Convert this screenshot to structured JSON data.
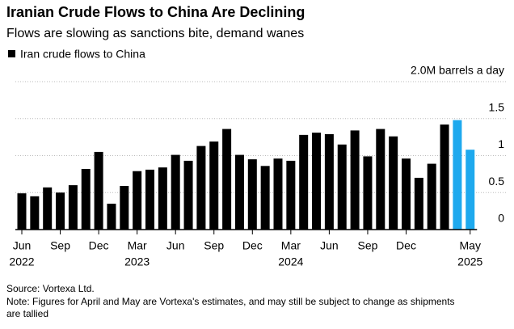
{
  "chart_data": {
    "type": "bar",
    "title": "Iranian Crude Flows to China Are Declining",
    "subtitle": "Flows are slowing as sanctions bite, demand wanes",
    "categories": [
      "Jun",
      null,
      null,
      "Sep",
      null,
      null,
      "Dec",
      null,
      null,
      "Mar",
      null,
      null,
      "Jun",
      null,
      null,
      "Sep",
      null,
      null,
      "Dec",
      null,
      null,
      "Mar",
      null,
      null,
      "Jun",
      null,
      null,
      "Sep",
      null,
      null,
      "Dec",
      null,
      null,
      null,
      null,
      "May"
    ],
    "years": [
      "2022",
      null,
      null,
      null,
      null,
      null,
      null,
      null,
      null,
      "2023",
      null,
      null,
      null,
      null,
      null,
      null,
      null,
      null,
      null,
      null,
      null,
      "2024",
      null,
      null,
      null,
      null,
      null,
      null,
      null,
      null,
      null,
      null,
      null,
      null,
      null,
      "2025"
    ],
    "series": [
      {
        "name": "Iran crude flows to China",
        "color": "#000000",
        "values": [
          0.49,
          0.45,
          0.57,
          0.5,
          0.6,
          0.82,
          1.05,
          0.35,
          0.59,
          0.79,
          0.81,
          0.84,
          1.01,
          0.93,
          1.13,
          1.19,
          1.36,
          1.01,
          0.95,
          0.86,
          0.96,
          0.93,
          1.28,
          1.31,
          1.29,
          1.15,
          1.34,
          0.99,
          1.36,
          1.26,
          0.96,
          0.7,
          0.89,
          1.42,
          1.48,
          1.08
        ]
      }
    ],
    "bar_colors": [
      "#000000",
      "#000000",
      "#000000",
      "#000000",
      "#000000",
      "#000000",
      "#000000",
      "#000000",
      "#000000",
      "#000000",
      "#000000",
      "#000000",
      "#000000",
      "#000000",
      "#000000",
      "#000000",
      "#000000",
      "#000000",
      "#000000",
      "#000000",
      "#000000",
      "#000000",
      "#000000",
      "#000000",
      "#000000",
      "#000000",
      "#000000",
      "#000000",
      "#000000",
      "#000000",
      "#000000",
      "#000000",
      "#000000",
      "#000000",
      "#1ea9ee",
      "#1ea9ee"
    ],
    "ylim": [
      0,
      2
    ],
    "yticks": [
      0,
      0.5,
      1,
      1.5,
      {
        "value": 2,
        "label": "2.0M barrels a day"
      }
    ],
    "grid": true,
    "legend": "top-left",
    "source": "Source: Vortexa Ltd.",
    "note": [
      "Note: Figures for April and May are Vortexa's estimates, and may still be subject to change as shipments",
      "are tallied"
    ]
  }
}
